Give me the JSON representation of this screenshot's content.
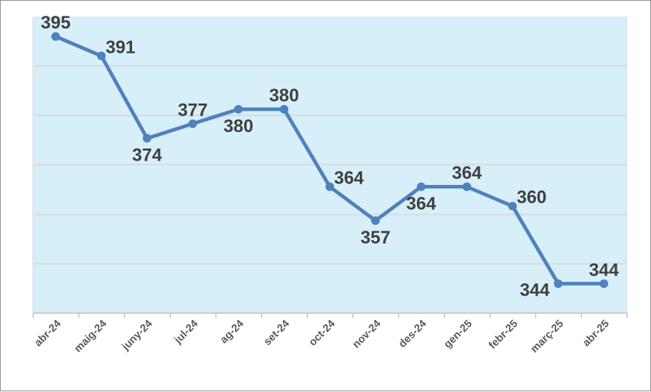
{
  "colors": {
    "plot_background": "#d6eff9",
    "line": "#4f81bd",
    "gridline": "#d9d9d9",
    "axis": "#bfbfbf",
    "label": "#404040",
    "tick_label": "#595959"
  },
  "chart_data": {
    "type": "line",
    "title": "",
    "xlabel": "",
    "ylabel": "",
    "categories": [
      "abr-24",
      "maig-24",
      "juny-24",
      "jul-24",
      "ag-24",
      "set-24",
      "oct-24",
      "nov-24",
      "des-24",
      "gen-25",
      "febr-25",
      "març-25",
      "abr-25"
    ],
    "series": [
      {
        "name": "",
        "values": [
          395,
          391,
          374,
          377,
          380,
          380,
          364,
          357,
          364,
          364,
          360,
          344,
          344
        ],
        "labels": [
          "395",
          "391",
          "374",
          "377",
          "380",
          "380",
          "364",
          "357",
          "364",
          "364",
          "360",
          "344",
          "344"
        ],
        "label_positions": [
          "above",
          "above-right",
          "below",
          "above",
          "below",
          "above",
          "above-right",
          "below",
          "below",
          "above",
          "above-right",
          "below-left",
          "above"
        ]
      }
    ],
    "ylim": [
      338,
      399
    ],
    "gridlines_y": [
      348.2,
      358.4,
      368.6,
      378.8,
      389
    ],
    "y_tick_labels_visible": false,
    "grid": true,
    "legend": "none"
  }
}
